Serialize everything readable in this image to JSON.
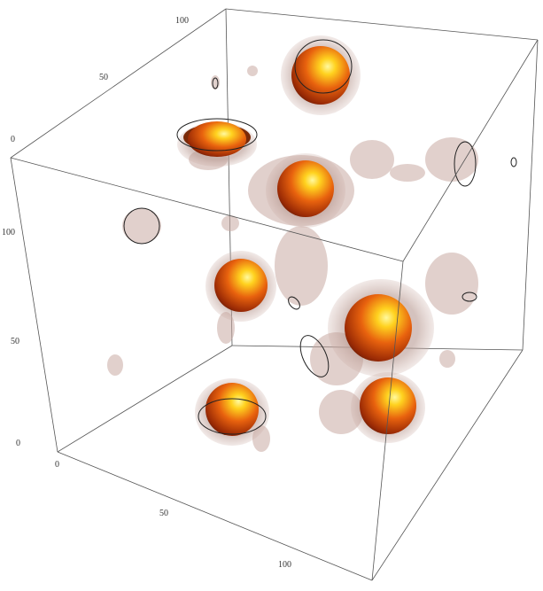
{
  "axes": {
    "x": [
      0,
      50,
      100
    ],
    "y": [
      0,
      50,
      100
    ],
    "z": [
      0,
      50,
      100
    ]
  }
}
